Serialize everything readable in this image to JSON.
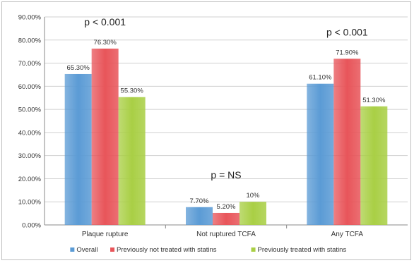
{
  "chart_data": {
    "type": "bar",
    "categories": [
      "Plaque rupture",
      "Not ruptured TCFA",
      "Any TCFA"
    ],
    "series": [
      {
        "name": "Overall",
        "values": [
          65.3,
          7.7,
          61.1
        ],
        "labels": [
          "65.30%",
          "7.70%",
          "61.10%"
        ],
        "color": "#5b9bd5"
      },
      {
        "name": "Previously not treated with statins",
        "values": [
          76.3,
          5.2,
          71.9
        ],
        "labels": [
          "76.30%",
          "5.20%",
          "71.90%"
        ],
        "color": "#e8555a"
      },
      {
        "name": "Previously treated with statins",
        "values": [
          55.3,
          10.0,
          51.3
        ],
        "labels": [
          "55.30%",
          "10%",
          "51.30%"
        ],
        "color": "#a9cf45"
      }
    ],
    "yticks": [
      "0.00%",
      "10.00%",
      "20.00%",
      "30.00%",
      "40.00%",
      "50.00%",
      "60.00%",
      "70.00%",
      "80.00%",
      "90.00%"
    ],
    "ylim": [
      0,
      90
    ],
    "grid": true,
    "legend_position": "bottom",
    "annotations": [
      "p < 0.001",
      "p = NS",
      "p < 0.001"
    ]
  }
}
